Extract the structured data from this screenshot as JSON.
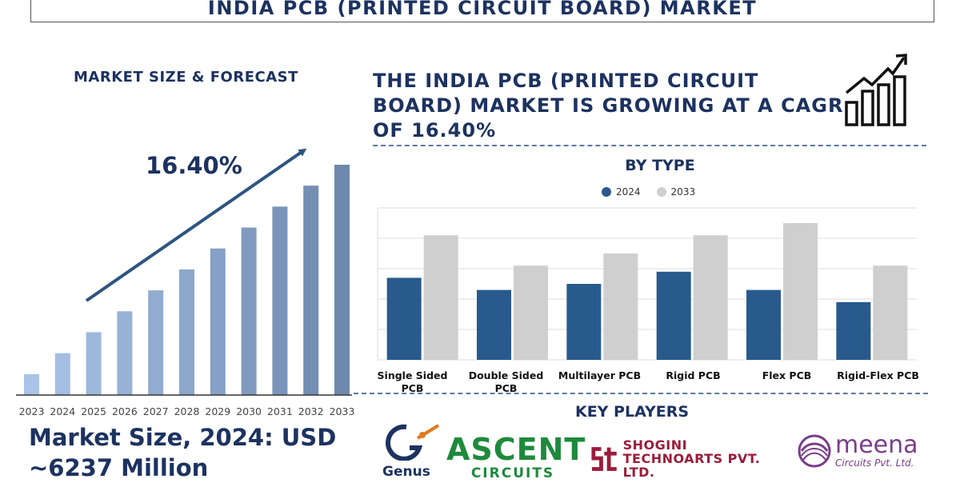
{
  "header": {
    "title": "INDIA PCB (PRINTED CIRCUIT BOARD) MARKET"
  },
  "left_panel": {
    "heading": "MARKET SIZE & FORECAST",
    "cagr_label": "16.40%",
    "market_size_line1": "Market Size, 2024: USD",
    "market_size_line2": "~6237 Million"
  },
  "right_panel": {
    "headline": "THE INDIA PCB (PRINTED CIRCUIT BOARD) MARKET IS GROWING AT A CAGR OF 16.40%",
    "growth_icon": "growth-chart-icon",
    "by_type_heading": "BY TYPE",
    "key_players_heading": "KEY PLAYERS"
  },
  "key_players": {
    "genus": "Genus",
    "ascent_big": "ASCENT",
    "ascent_small": "CIRCUITS",
    "shogini_line1": "SHOGINI",
    "shogini_line2": "TECHNOARTS PVT. LTD.",
    "meena_big": "meena",
    "meena_small": "Circuits Pvt. Ltd."
  },
  "colors": {
    "navy": "#1c3260",
    "bar_light": "#a9c4e8",
    "bar_dark": "#6e89ad",
    "series_2024": "#285a8e",
    "series_2033": "#cfcfcf"
  },
  "chart_data": [
    {
      "type": "bar",
      "categories": [
        "2023",
        "2024",
        "2025",
        "2026",
        "2027",
        "2028",
        "2029",
        "2030",
        "2031",
        "2032",
        "2033"
      ],
      "values": [
        1.0,
        2.0,
        3.0,
        4.0,
        5.0,
        6.0,
        7.0,
        8.0,
        9.0,
        10.0,
        11.0
      ],
      "annotation": "16.40%",
      "title": "MARKET SIZE & FORECAST"
    },
    {
      "type": "bar",
      "title": "BY TYPE",
      "categories": [
        "Single Sided PCB",
        "Double Sided PCB",
        "Multilayer PCB",
        "Rigid PCB",
        "Flex PCB",
        "Rigid-Flex PCB"
      ],
      "series": [
        {
          "name": "2024",
          "values": [
            2.7,
            2.3,
            2.5,
            2.9,
            2.3,
            1.9
          ]
        },
        {
          "name": "2033",
          "values": [
            4.1,
            3.1,
            3.5,
            4.1,
            4.5,
            3.1
          ]
        }
      ],
      "ylim": [
        0,
        5
      ],
      "grid": true,
      "legend": "top-center"
    }
  ]
}
